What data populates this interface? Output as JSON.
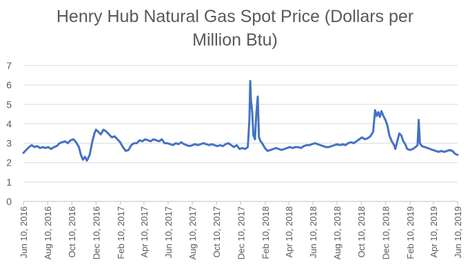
{
  "chart_data": {
    "type": "line",
    "title_lines": [
      "Henry Hub Natural Gas Spot Price (Dollars per",
      "Million Btu)"
    ],
    "xlabel": "",
    "ylabel": "",
    "ylim": [
      0,
      7
    ],
    "y_ticks": [
      0,
      1,
      2,
      3,
      4,
      5,
      6,
      7
    ],
    "grid": "horizontal",
    "legend": "none",
    "x_range": [
      "2016-06-10",
      "2019-06-10"
    ],
    "x_ticks": [
      {
        "date": "2016-06-10",
        "label": "Jun 10, 2016"
      },
      {
        "date": "2016-08-10",
        "label": "Aug 10, 2016"
      },
      {
        "date": "2016-10-10",
        "label": "Oct 10, 2016"
      },
      {
        "date": "2016-12-10",
        "label": "Dec 10, 2016"
      },
      {
        "date": "2017-02-10",
        "label": "Feb 10, 2017"
      },
      {
        "date": "2017-04-10",
        "label": "Apr 10, 2017"
      },
      {
        "date": "2017-06-10",
        "label": "Jun 10, 2017"
      },
      {
        "date": "2017-08-10",
        "label": "Aug 10, 2017"
      },
      {
        "date": "2017-10-10",
        "label": "Oct 10, 2017"
      },
      {
        "date": "2017-12-10",
        "label": "Dec 10, 2017"
      },
      {
        "date": "2018-02-10",
        "label": "Feb 10, 2018"
      },
      {
        "date": "2018-04-10",
        "label": "Apr 10, 2018"
      },
      {
        "date": "2018-06-10",
        "label": "Jun 10, 2018"
      },
      {
        "date": "2018-08-10",
        "label": "Aug 10, 2018"
      },
      {
        "date": "2018-10-10",
        "label": "Oct 10, 2018"
      },
      {
        "date": "2018-12-10",
        "label": "Dec 10, 2018"
      },
      {
        "date": "2019-02-10",
        "label": "Feb 10, 2019"
      },
      {
        "date": "2019-04-10",
        "label": "Apr 10, 2019"
      },
      {
        "date": "2019-06-10",
        "label": "Jun 10, 2019"
      }
    ],
    "line_color": "#4472c4",
    "series": [
      {
        "points": [
          [
            "2016-06-10",
            2.5
          ],
          [
            "2016-06-17",
            2.65
          ],
          [
            "2016-06-24",
            2.8
          ],
          [
            "2016-07-01",
            2.9
          ],
          [
            "2016-07-08",
            2.8
          ],
          [
            "2016-07-15",
            2.85
          ],
          [
            "2016-07-22",
            2.75
          ],
          [
            "2016-07-29",
            2.8
          ],
          [
            "2016-08-05",
            2.75
          ],
          [
            "2016-08-12",
            2.8
          ],
          [
            "2016-08-19",
            2.7
          ],
          [
            "2016-08-26",
            2.8
          ],
          [
            "2016-09-02",
            2.85
          ],
          [
            "2016-09-09",
            3.0
          ],
          [
            "2016-09-16",
            3.05
          ],
          [
            "2016-09-23",
            3.1
          ],
          [
            "2016-09-30",
            3.0
          ],
          [
            "2016-10-07",
            3.15
          ],
          [
            "2016-10-14",
            3.2
          ],
          [
            "2016-10-21",
            3.05
          ],
          [
            "2016-10-28",
            2.8
          ],
          [
            "2016-11-02",
            2.4
          ],
          [
            "2016-11-07",
            2.15
          ],
          [
            "2016-11-12",
            2.3
          ],
          [
            "2016-11-17",
            2.1
          ],
          [
            "2016-11-24",
            2.4
          ],
          [
            "2016-12-01",
            3.1
          ],
          [
            "2016-12-06",
            3.5
          ],
          [
            "2016-12-10",
            3.7
          ],
          [
            "2016-12-15",
            3.6
          ],
          [
            "2016-12-22",
            3.45
          ],
          [
            "2016-12-29",
            3.7
          ],
          [
            "2017-01-05",
            3.6
          ],
          [
            "2017-01-12",
            3.45
          ],
          [
            "2017-01-19",
            3.3
          ],
          [
            "2017-01-26",
            3.35
          ],
          [
            "2017-02-02",
            3.2
          ],
          [
            "2017-02-09",
            3.05
          ],
          [
            "2017-02-16",
            2.8
          ],
          [
            "2017-02-23",
            2.6
          ],
          [
            "2017-03-02",
            2.65
          ],
          [
            "2017-03-09",
            2.9
          ],
          [
            "2017-03-16",
            3.0
          ],
          [
            "2017-03-23",
            3.0
          ],
          [
            "2017-03-30",
            3.15
          ],
          [
            "2017-04-06",
            3.1
          ],
          [
            "2017-04-13",
            3.2
          ],
          [
            "2017-04-20",
            3.15
          ],
          [
            "2017-04-27",
            3.1
          ],
          [
            "2017-05-04",
            3.2
          ],
          [
            "2017-05-11",
            3.15
          ],
          [
            "2017-05-18",
            3.1
          ],
          [
            "2017-05-25",
            3.2
          ],
          [
            "2017-06-01",
            3.0
          ],
          [
            "2017-06-08",
            3.0
          ],
          [
            "2017-06-15",
            2.95
          ],
          [
            "2017-06-22",
            2.9
          ],
          [
            "2017-06-29",
            3.0
          ],
          [
            "2017-07-06",
            2.95
          ],
          [
            "2017-07-13",
            3.05
          ],
          [
            "2017-07-20",
            2.95
          ],
          [
            "2017-07-27",
            2.9
          ],
          [
            "2017-08-03",
            2.85
          ],
          [
            "2017-08-10",
            2.9
          ],
          [
            "2017-08-17",
            2.95
          ],
          [
            "2017-08-24",
            2.9
          ],
          [
            "2017-08-31",
            2.95
          ],
          [
            "2017-09-07",
            3.0
          ],
          [
            "2017-09-14",
            2.95
          ],
          [
            "2017-09-21",
            2.9
          ],
          [
            "2017-09-28",
            2.95
          ],
          [
            "2017-10-05",
            2.9
          ],
          [
            "2017-10-12",
            2.85
          ],
          [
            "2017-10-19",
            2.9
          ],
          [
            "2017-10-26",
            2.85
          ],
          [
            "2017-11-02",
            2.95
          ],
          [
            "2017-11-09",
            3.0
          ],
          [
            "2017-11-16",
            2.9
          ],
          [
            "2017-11-23",
            2.8
          ],
          [
            "2017-11-30",
            2.9
          ],
          [
            "2017-12-07",
            2.7
          ],
          [
            "2017-12-14",
            2.75
          ],
          [
            "2017-12-21",
            2.7
          ],
          [
            "2017-12-28",
            2.8
          ],
          [
            "2018-01-01",
            4.2
          ],
          [
            "2018-01-03",
            6.2
          ],
          [
            "2018-01-05",
            5.2
          ],
          [
            "2018-01-08",
            4.6
          ],
          [
            "2018-01-11",
            3.4
          ],
          [
            "2018-01-15",
            3.2
          ],
          [
            "2018-01-18",
            4.4
          ],
          [
            "2018-01-22",
            5.4
          ],
          [
            "2018-01-25",
            3.3
          ],
          [
            "2018-01-29",
            3.1
          ],
          [
            "2018-02-02",
            3.0
          ],
          [
            "2018-02-09",
            2.75
          ],
          [
            "2018-02-16",
            2.6
          ],
          [
            "2018-02-23",
            2.65
          ],
          [
            "2018-03-02",
            2.7
          ],
          [
            "2018-03-09",
            2.75
          ],
          [
            "2018-03-16",
            2.7
          ],
          [
            "2018-03-23",
            2.65
          ],
          [
            "2018-03-30",
            2.7
          ],
          [
            "2018-04-06",
            2.75
          ],
          [
            "2018-04-13",
            2.8
          ],
          [
            "2018-04-20",
            2.75
          ],
          [
            "2018-04-27",
            2.8
          ],
          [
            "2018-05-04",
            2.8
          ],
          [
            "2018-05-11",
            2.75
          ],
          [
            "2018-05-18",
            2.85
          ],
          [
            "2018-05-25",
            2.9
          ],
          [
            "2018-06-01",
            2.9
          ],
          [
            "2018-06-08",
            2.95
          ],
          [
            "2018-06-15",
            3.0
          ],
          [
            "2018-06-22",
            2.95
          ],
          [
            "2018-06-29",
            2.9
          ],
          [
            "2018-07-06",
            2.85
          ],
          [
            "2018-07-13",
            2.8
          ],
          [
            "2018-07-20",
            2.8
          ],
          [
            "2018-07-27",
            2.85
          ],
          [
            "2018-08-03",
            2.9
          ],
          [
            "2018-08-10",
            2.95
          ],
          [
            "2018-08-17",
            2.9
          ],
          [
            "2018-08-24",
            2.95
          ],
          [
            "2018-08-31",
            2.9
          ],
          [
            "2018-09-07",
            3.0
          ],
          [
            "2018-09-14",
            3.05
          ],
          [
            "2018-09-21",
            3.0
          ],
          [
            "2018-09-28",
            3.1
          ],
          [
            "2018-10-05",
            3.2
          ],
          [
            "2018-10-12",
            3.3
          ],
          [
            "2018-10-19",
            3.2
          ],
          [
            "2018-10-26",
            3.25
          ],
          [
            "2018-11-02",
            3.35
          ],
          [
            "2018-11-09",
            3.6
          ],
          [
            "2018-11-14",
            4.7
          ],
          [
            "2018-11-18",
            4.4
          ],
          [
            "2018-11-22",
            4.6
          ],
          [
            "2018-11-26",
            4.35
          ],
          [
            "2018-11-30",
            4.65
          ],
          [
            "2018-12-05",
            4.4
          ],
          [
            "2018-12-10",
            4.2
          ],
          [
            "2018-12-15",
            3.9
          ],
          [
            "2018-12-20",
            3.4
          ],
          [
            "2018-12-26",
            3.1
          ],
          [
            "2019-01-01",
            2.9
          ],
          [
            "2019-01-04",
            2.7
          ],
          [
            "2019-01-09",
            3.1
          ],
          [
            "2019-01-14",
            3.5
          ],
          [
            "2019-01-19",
            3.4
          ],
          [
            "2019-01-24",
            3.1
          ],
          [
            "2019-01-29",
            2.95
          ],
          [
            "2019-02-03",
            2.7
          ],
          [
            "2019-02-10",
            2.65
          ],
          [
            "2019-02-17",
            2.7
          ],
          [
            "2019-02-24",
            2.8
          ],
          [
            "2019-03-01",
            2.9
          ],
          [
            "2019-03-04",
            4.2
          ],
          [
            "2019-03-07",
            3.0
          ],
          [
            "2019-03-12",
            2.85
          ],
          [
            "2019-03-19",
            2.8
          ],
          [
            "2019-03-26",
            2.75
          ],
          [
            "2019-04-02",
            2.7
          ],
          [
            "2019-04-09",
            2.65
          ],
          [
            "2019-04-16",
            2.6
          ],
          [
            "2019-04-23",
            2.55
          ],
          [
            "2019-04-30",
            2.6
          ],
          [
            "2019-05-07",
            2.55
          ],
          [
            "2019-05-14",
            2.6
          ],
          [
            "2019-05-21",
            2.65
          ],
          [
            "2019-05-28",
            2.6
          ],
          [
            "2019-06-04",
            2.45
          ],
          [
            "2019-06-10",
            2.4
          ]
        ]
      }
    ]
  }
}
